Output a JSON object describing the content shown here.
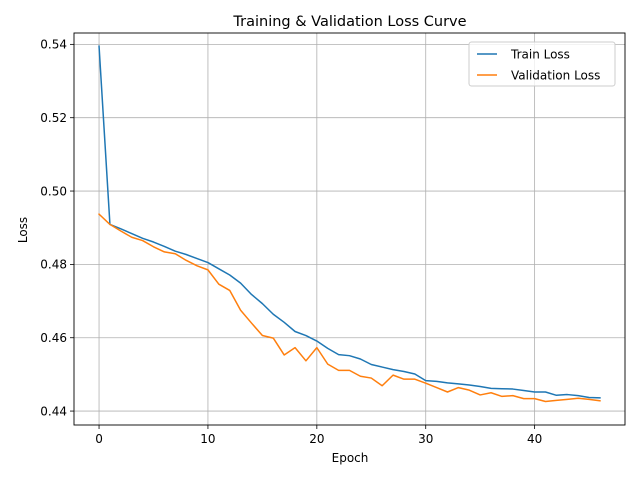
{
  "chart_data": {
    "type": "line",
    "title": "Training & Validation Loss Curve",
    "xlabel": "Epoch",
    "ylabel": "Loss",
    "xlim": [
      -2.3,
      48.3
    ],
    "ylim": [
      0.4362,
      0.5431
    ],
    "xticks": [
      0,
      10,
      20,
      30,
      40
    ],
    "yticks": [
      0.44,
      0.46,
      0.48,
      0.5,
      0.52,
      0.54
    ],
    "xtick_labels": [
      "0",
      "10",
      "20",
      "30",
      "40"
    ],
    "ytick_labels": [
      "0.44",
      "0.46",
      "0.48",
      "0.50",
      "0.52",
      "0.54"
    ],
    "grid": true,
    "legend_position": "top-right",
    "x": [
      0,
      1,
      2,
      3,
      4,
      5,
      6,
      7,
      8,
      9,
      10,
      11,
      12,
      13,
      14,
      15,
      16,
      17,
      18,
      19,
      20,
      21,
      22,
      23,
      24,
      25,
      26,
      27,
      28,
      29,
      30,
      31,
      32,
      33,
      34,
      35,
      36,
      37,
      38,
      39,
      40,
      41,
      42,
      43,
      44,
      45,
      46
    ],
    "series": [
      {
        "name": "Train Loss",
        "color": "#1f77b4",
        "values": [
          0.5395,
          0.4909,
          0.4897,
          0.4884,
          0.4871,
          0.4861,
          0.4849,
          0.4836,
          0.4827,
          0.4816,
          0.4805,
          0.4788,
          0.4771,
          0.4749,
          0.4718,
          0.4693,
          0.4664,
          0.4642,
          0.4617,
          0.4606,
          0.4591,
          0.4571,
          0.4554,
          0.4551,
          0.4542,
          0.4527,
          0.452,
          0.4513,
          0.4508,
          0.4501,
          0.4483,
          0.4481,
          0.4477,
          0.4474,
          0.4471,
          0.4467,
          0.4462,
          0.4461,
          0.446,
          0.4456,
          0.4452,
          0.4452,
          0.4443,
          0.4445,
          0.4442,
          0.4437,
          0.4436
        ]
      },
      {
        "name": "Validation Loss",
        "color": "#ff7f0e",
        "values": [
          0.4937,
          0.4909,
          0.4891,
          0.4874,
          0.4865,
          0.4848,
          0.4834,
          0.4829,
          0.4811,
          0.4796,
          0.4785,
          0.4746,
          0.4729,
          0.4675,
          0.464,
          0.4606,
          0.4599,
          0.4553,
          0.4573,
          0.4537,
          0.4573,
          0.4528,
          0.4511,
          0.4511,
          0.4495,
          0.449,
          0.4469,
          0.4498,
          0.4487,
          0.4487,
          0.4476,
          0.4464,
          0.4452,
          0.4464,
          0.4457,
          0.4444,
          0.445,
          0.444,
          0.4442,
          0.4434,
          0.4434,
          0.4426,
          0.4429,
          0.4432,
          0.4435,
          0.4432,
          0.4428
        ]
      }
    ]
  }
}
